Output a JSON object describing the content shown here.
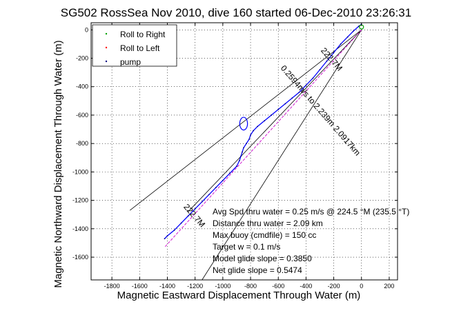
{
  "chart_data": {
    "type": "scatter",
    "title": "SG502 RossSea Nov 2010, dive 160 started 06-Dec-2010 23:26:31",
    "xlabel": "Magnetic Eastward Displacement Through Water (m)",
    "ylabel": "Magnetic Northward Displacement Through Water (m)",
    "xlim": [
      -1950,
      260
    ],
    "ylim": [
      -1760,
      50
    ],
    "xticks": [
      -1800,
      -1600,
      -1400,
      -1200,
      -1000,
      -800,
      -600,
      -400,
      -200,
      0,
      200
    ],
    "yticks": [
      0,
      -200,
      -400,
      -600,
      -800,
      -1000,
      -1200,
      -1400,
      -1600
    ],
    "grid": true,
    "legend": {
      "position": "top-left",
      "entries": [
        {
          "label": "Roll to Right",
          "color": "#00a000",
          "marker": "dot"
        },
        {
          "label": "Roll to Left",
          "color": "#ff0000",
          "marker": "dot"
        },
        {
          "label": "pump",
          "color": "#000080",
          "marker": "dot"
        }
      ]
    },
    "series": [
      {
        "color": "#0000ff",
        "x": [
          0,
          -20,
          -60,
          -100,
          -150,
          -200,
          -250,
          -300,
          -350,
          -400,
          -450,
          -500,
          -550,
          -600,
          -650,
          -700,
          -750,
          -780,
          -800,
          -810,
          -830,
          -850,
          -860,
          -870,
          -880,
          -900,
          -950,
          -1000,
          -1050,
          -1100,
          -1150,
          -1200,
          -1250,
          -1300,
          -1350,
          -1400,
          -1420
        ],
        "y": [
          40,
          25,
          -10,
          -50,
          -100,
          -160,
          -220,
          -280,
          -340,
          -390,
          -440,
          -480,
          -520,
          -560,
          -600,
          -640,
          -680,
          -710,
          -740,
          -770,
          -800,
          -830,
          -860,
          -890,
          -920,
          -960,
          -1010,
          -1060,
          -1110,
          -1160,
          -1210,
          -1260,
          -1310,
          -1360,
          -1410,
          -1450,
          -1470
        ]
      }
    ],
    "model_track": {
      "color": "#cc00cc",
      "x": [
        0,
        -1420
      ],
      "y": [
        0,
        -1530
      ]
    },
    "bearing_lines": [
      {
        "color": "#000000",
        "x": [
          0,
          -1670
        ],
        "y": [
          0,
          -1270
        ]
      },
      {
        "color": "#000000",
        "x": [
          0,
          -1250
        ],
        "y": [
          0,
          -1280
        ]
      },
      {
        "color": "#000000",
        "x": [
          0,
          -1150
        ],
        "y": [
          0,
          -1760
        ]
      }
    ],
    "loop": {
      "x": -850,
      "y": -660,
      "rx": 28,
      "ry": 45,
      "color": "#0000ff"
    },
    "annotations": [
      {
        "text": "222.7M",
        "x": -230,
        "y": -220,
        "rotate": 49
      },
      {
        "text": "0.2594m/s to 2.239m 2.0917km",
        "x": -310,
        "y": -580,
        "rotate": 49
      },
      {
        "text": "222.7M",
        "x": -1220,
        "y": -1320,
        "rotate": 49
      }
    ],
    "stats": [
      "Avg Spd thru water =  0.25 m/s @ 224.5    °M (235.5 °T)",
      "Distance thru water =  2.09 km",
      "Max buoy (cmdfile) = 150 cc",
      "Target w = 0.1 m/s",
      "Model glide slope = 0.3850",
      "Net glide slope = 0.5474"
    ]
  }
}
